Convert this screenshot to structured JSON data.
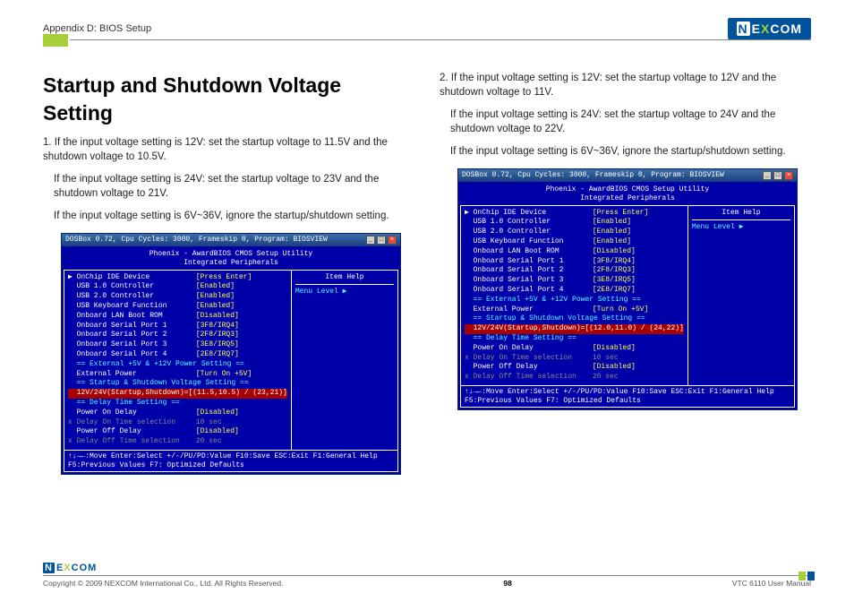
{
  "header": {
    "appendix": "Appendix D: BIOS Setup",
    "logo_text": "NEXCOM"
  },
  "title": "Startup and Shutdown Voltage Setting",
  "col1": {
    "p1": "1. If the input voltage setting is 12V: set the startup voltage to 11.5V and the shutdown voltage to 10.5V.",
    "p2": "If the input voltage setting is 24V: set the startup voltage to 23V and the shutdown voltage to 21V.",
    "p3": "If the input voltage setting is 6V~36V, ignore the startup/shutdown setting."
  },
  "col2": {
    "p1": "2. If the input voltage setting is 12V: set the startup voltage to 12V and the shutdown voltage to 11V.",
    "p2": "If the input voltage setting is 24V: set the startup voltage to 24V and the shutdown voltage to 22V.",
    "p3": "If the input voltage setting is 6V~36V, ignore the startup/shutdown setting."
  },
  "bios": {
    "titlebar": "DOSBox 0.72, Cpu Cycles:   3000, Frameskip  0, Program: BIOSVIEW",
    "header1": "Phoenix - AwardBIOS CMOS Setup Utility",
    "header2": "Integrated Peripherals",
    "help_title": "Item Help",
    "help_body": "Menu Level   ▶",
    "rows": [
      {
        "label": "▶ OnChip IDE Device",
        "val": "[Press Enter]",
        "cls": ""
      },
      {
        "label": "  USB 1.0 Controller",
        "val": "[Enabled]",
        "cls": ""
      },
      {
        "label": "  USB 2.0 Controller",
        "val": "[Enabled]",
        "cls": ""
      },
      {
        "label": "  USB Keyboard Function",
        "val": "[Enabled]",
        "cls": ""
      },
      {
        "label": "  Onboard LAN Boot ROM",
        "val": "[Disabled]",
        "cls": ""
      },
      {
        "label": "  Onboard Serial Port 1",
        "val": "[3F8/IRQ4]",
        "cls": ""
      },
      {
        "label": "  Onboard Serial Port 2",
        "val": "[2F8/IRQ3]",
        "cls": ""
      },
      {
        "label": "  Onboard Serial Port 3",
        "val": "[3E8/IRQ5]",
        "cls": ""
      },
      {
        "label": "  Onboard Serial Port 4",
        "val": "[2E8/IRQ7]",
        "cls": ""
      },
      {
        "label": "",
        "val": "",
        "cls": ""
      },
      {
        "label": "  == External +5V & +12V Power Setting ==",
        "val": "",
        "cls": "cyan"
      },
      {
        "label": "  External Power",
        "val": "[Turn On +5V]",
        "cls": ""
      },
      {
        "label": "  == Startup & Shutdown Voltage Setting ==",
        "val": "",
        "cls": "cyan"
      }
    ],
    "sel1": {
      "label": "  12V/24V(Startup,Shutdown)=",
      "val": "[(11.5,10.5) / (23,21)]"
    },
    "sel2": {
      "label": "  12V/24V(Startup,Shutdown)=",
      "val": "[(12.0,11.0) / (24,22)]"
    },
    "rows_after": [
      {
        "label": "  == Delay Time Setting ==",
        "val": "",
        "cls": "cyan"
      },
      {
        "label": "  Power On Delay",
        "val": "[Disabled]",
        "cls": ""
      },
      {
        "label": "x Delay On Time selection",
        "val": "10 sec",
        "cls": "dis"
      },
      {
        "label": "  Power Off Delay",
        "val": "[Disabled]",
        "cls": ""
      },
      {
        "label": "x Delay Off Time selection",
        "val": "20 sec",
        "cls": "dis"
      }
    ],
    "footer1": "↑↓→←:Move  Enter:Select  +/-/PU/PD:Value  F10:Save  ESC:Exit  F1:General Help",
    "footer2": "F5:Previous Values               F7: Optimized Defaults"
  },
  "footer": {
    "copyright": "Copyright © 2009 NEXCOM International Co., Ltd. All Rights Reserved.",
    "page": "98",
    "manual": "VTC 6110 User Manual"
  }
}
